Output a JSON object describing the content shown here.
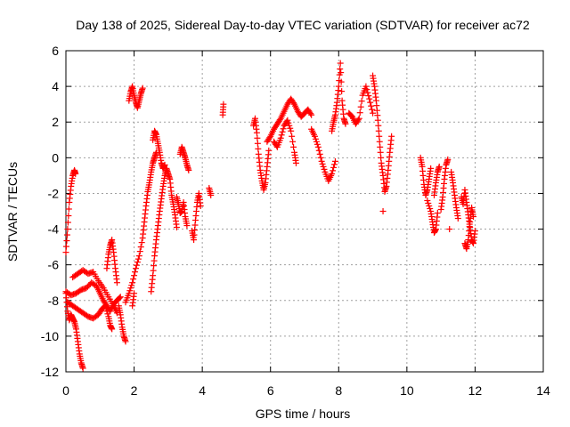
{
  "chart_data": {
    "type": "scatter",
    "title": "Day 138 of 2025, Sidereal Day-to-day VTEC variation (SDTVAR) for receiver ac72",
    "xlabel": "GPS time / hours",
    "ylabel": "SDTVAR / TECUs",
    "xlim": [
      0,
      14
    ],
    "ylim": [
      -12,
      6
    ],
    "xticks": [
      0,
      2,
      4,
      6,
      8,
      10,
      12,
      14
    ],
    "yticks": [
      -12,
      -10,
      -8,
      -6,
      -4,
      -2,
      0,
      2,
      4,
      6
    ],
    "grid": true,
    "marker": "plus",
    "color": "#ff0000",
    "series": [
      {
        "name": "SDTVAR",
        "segments": [
          [
            [
              0.0,
              -7.6
            ],
            [
              0.05,
              -8.6
            ],
            [
              0.1,
              -9.1
            ],
            [
              0.15,
              -8.8
            ],
            [
              0.2,
              -9.0
            ],
            [
              0.25,
              -9.2
            ],
            [
              0.3,
              -9.6
            ],
            [
              0.35,
              -10.3
            ],
            [
              0.4,
              -11.0
            ],
            [
              0.45,
              -11.5
            ],
            [
              0.5,
              -11.8
            ]
          ],
          [
            [
              0.0,
              -5.3
            ],
            [
              0.05,
              -4.0
            ],
            [
              0.1,
              -2.5
            ],
            [
              0.15,
              -1.6
            ],
            [
              0.2,
              -1.0
            ],
            [
              0.25,
              -0.7
            ],
            [
              0.28,
              -0.9
            ]
          ],
          [
            [
              0.0,
              -7.5
            ],
            [
              0.15,
              -7.7
            ],
            [
              0.3,
              -7.6
            ],
            [
              0.45,
              -7.4
            ],
            [
              0.6,
              -7.3
            ],
            [
              0.75,
              -7.0
            ],
            [
              0.9,
              -7.2
            ],
            [
              1.0,
              -7.6
            ],
            [
              1.1,
              -8.0
            ],
            [
              1.2,
              -8.3
            ],
            [
              1.3,
              -8.6
            ],
            [
              1.4,
              -8.2
            ],
            [
              1.5,
              -8.0
            ],
            [
              1.6,
              -7.8
            ]
          ],
          [
            [
              0.05,
              -8.1
            ],
            [
              0.2,
              -8.3
            ],
            [
              0.35,
              -8.5
            ],
            [
              0.5,
              -8.7
            ],
            [
              0.65,
              -8.9
            ],
            [
              0.8,
              -9.0
            ],
            [
              0.95,
              -8.8
            ],
            [
              1.05,
              -8.5
            ],
            [
              1.15,
              -8.3
            ],
            [
              1.25,
              -8.9
            ],
            [
              1.3,
              -9.4
            ],
            [
              1.35,
              -9.6
            ]
          ],
          [
            [
              0.2,
              -6.7
            ],
            [
              0.35,
              -6.5
            ],
            [
              0.5,
              -6.3
            ],
            [
              0.65,
              -6.5
            ],
            [
              0.8,
              -6.4
            ],
            [
              0.95,
              -6.9
            ],
            [
              1.1,
              -7.3
            ],
            [
              1.25,
              -7.8
            ],
            [
              1.4,
              -8.3
            ],
            [
              1.5,
              -8.7
            ]
          ],
          [
            [
              1.2,
              -6.2
            ],
            [
              1.25,
              -5.4
            ],
            [
              1.3,
              -4.9
            ],
            [
              1.35,
              -4.6
            ],
            [
              1.4,
              -5.3
            ],
            [
              1.45,
              -6.2
            ],
            [
              1.5,
              -7.0
            ]
          ],
          [
            [
              1.55,
              -8.3
            ],
            [
              1.6,
              -8.8
            ],
            [
              1.65,
              -9.5
            ],
            [
              1.7,
              -10.0
            ],
            [
              1.75,
              -10.3
            ]
          ],
          [
            [
              1.75,
              -8.1
            ],
            [
              1.85,
              -7.6
            ],
            [
              1.95,
              -7.0
            ],
            [
              2.05,
              -6.2
            ],
            [
              2.15,
              -5.5
            ],
            [
              2.25,
              -4.5
            ],
            [
              2.3,
              -3.6
            ],
            [
              2.35,
              -2.7
            ],
            [
              2.4,
              -1.9
            ],
            [
              2.45,
              -1.4
            ],
            [
              2.5,
              -0.8
            ],
            [
              2.55,
              -0.3
            ],
            [
              2.6,
              0.0
            ],
            [
              2.65,
              0.3
            ]
          ],
          [
            [
              1.95,
              -8.3
            ],
            [
              2.0,
              -7.6
            ]
          ],
          [
            [
              1.85,
              3.2
            ],
            [
              1.9,
              3.7
            ],
            [
              1.95,
              4.0
            ],
            [
              2.0,
              3.5
            ],
            [
              2.05,
              3.1
            ],
            [
              2.1,
              2.8
            ],
            [
              2.15,
              3.2
            ],
            [
              2.2,
              3.6
            ],
            [
              2.25,
              3.9
            ]
          ],
          [
            [
              2.5,
              -7.5
            ],
            [
              2.55,
              -6.6
            ],
            [
              2.6,
              -5.5
            ],
            [
              2.65,
              -4.6
            ],
            [
              2.7,
              -3.8
            ],
            [
              2.75,
              -3.0
            ],
            [
              2.8,
              -2.3
            ],
            [
              2.85,
              -1.6
            ],
            [
              2.9,
              -1.0
            ],
            [
              2.95,
              -0.6
            ],
            [
              3.0,
              -0.9
            ],
            [
              3.05,
              -1.2
            ],
            [
              3.1,
              -2.1
            ],
            [
              3.15,
              -2.6
            ],
            [
              3.2,
              -3.2
            ],
            [
              3.25,
              -3.9
            ]
          ],
          [
            [
              2.55,
              1.0
            ],
            [
              2.6,
              1.5
            ],
            [
              2.65,
              1.3
            ],
            [
              2.7,
              0.8
            ],
            [
              2.75,
              0.3
            ],
            [
              2.8,
              -0.3
            ],
            [
              2.85,
              -0.6
            ],
            [
              2.9,
              -0.4
            ]
          ],
          [
            [
              3.25,
              -2.2
            ],
            [
              3.3,
              -2.6
            ],
            [
              3.35,
              -3.1
            ],
            [
              3.4,
              -3.0
            ],
            [
              3.45,
              -2.5
            ],
            [
              3.5,
              -3.3
            ],
            [
              3.55,
              -3.8
            ]
          ],
          [
            [
              3.35,
              0.2
            ],
            [
              3.4,
              0.6
            ],
            [
              3.45,
              0.3
            ],
            [
              3.5,
              0.0
            ],
            [
              3.55,
              -0.4
            ],
            [
              3.6,
              -0.7
            ]
          ],
          [
            [
              3.7,
              -4.1
            ],
            [
              3.75,
              -4.6
            ],
            [
              3.8,
              -3.5
            ],
            [
              3.85,
              -2.5
            ],
            [
              3.9,
              -2.0
            ],
            [
              3.95,
              -2.7
            ]
          ],
          [
            [
              4.2,
              -1.7
            ],
            [
              4.25,
              -2.1
            ]
          ],
          [
            [
              4.6,
              2.4
            ],
            [
              4.62,
              3.0
            ]
          ],
          [
            [
              5.5,
              1.8
            ],
            [
              5.55,
              2.2
            ],
            [
              5.6,
              1.4
            ],
            [
              5.65,
              0.2
            ],
            [
              5.7,
              -0.7
            ],
            [
              5.75,
              -1.3
            ],
            [
              5.8,
              -1.8
            ],
            [
              5.85,
              -1.4
            ],
            [
              5.9,
              -0.5
            ],
            [
              5.95,
              0.4
            ]
          ],
          [
            [
              5.9,
              0.9
            ],
            [
              6.0,
              1.2
            ],
            [
              6.1,
              1.6
            ],
            [
              6.2,
              1.9
            ],
            [
              6.3,
              2.2
            ],
            [
              6.4,
              2.6
            ],
            [
              6.5,
              3.0
            ],
            [
              6.6,
              3.3
            ],
            [
              6.7,
              3.0
            ],
            [
              6.8,
              2.6
            ],
            [
              6.9,
              2.3
            ],
            [
              7.0,
              2.5
            ],
            [
              7.1,
              2.7
            ],
            [
              7.2,
              2.4
            ]
          ],
          [
            [
              6.1,
              0.9
            ],
            [
              6.2,
              0.6
            ],
            [
              6.3,
              1.1
            ],
            [
              6.4,
              1.8
            ],
            [
              6.5,
              2.1
            ],
            [
              6.6,
              1.5
            ],
            [
              6.7,
              0.3
            ],
            [
              6.75,
              -0.3
            ]
          ],
          [
            [
              7.2,
              1.6
            ],
            [
              7.3,
              1.2
            ],
            [
              7.4,
              0.6
            ],
            [
              7.5,
              -0.2
            ],
            [
              7.6,
              -0.8
            ],
            [
              7.7,
              -1.3
            ],
            [
              7.8,
              -0.9
            ],
            [
              7.9,
              -0.2
            ]
          ],
          [
            [
              7.8,
              1.5
            ],
            [
              7.85,
              2.0
            ],
            [
              7.9,
              2.4
            ],
            [
              7.95,
              3.1
            ],
            [
              8.0,
              4.0
            ],
            [
              8.05,
              5.3
            ],
            [
              8.1,
              3.2
            ],
            [
              8.15,
              2.2
            ],
            [
              8.2,
              1.9
            ]
          ],
          [
            [
              8.3,
              2.5
            ],
            [
              8.4,
              2.3
            ],
            [
              8.5,
              1.9
            ],
            [
              8.6,
              2.2
            ],
            [
              8.7,
              3.5
            ],
            [
              8.8,
              4.0
            ],
            [
              8.9,
              3.3
            ],
            [
              9.0,
              2.5
            ]
          ],
          [
            [
              9.0,
              4.6
            ],
            [
              9.05,
              4.0
            ],
            [
              9.1,
              3.2
            ],
            [
              9.15,
              2.1
            ],
            [
              9.2,
              0.9
            ],
            [
              9.25,
              -0.3
            ],
            [
              9.3,
              -1.0
            ],
            [
              9.35,
              -1.9
            ],
            [
              9.4,
              -1.6
            ],
            [
              9.45,
              -0.7
            ],
            [
              9.5,
              0.3
            ],
            [
              9.55,
              1.2
            ]
          ],
          [
            [
              9.3,
              -3.0
            ]
          ],
          [
            [
              10.4,
              0.0
            ],
            [
              10.45,
              -0.5
            ],
            [
              10.5,
              -1.5
            ],
            [
              10.55,
              -2.1
            ],
            [
              10.6,
              -1.8
            ],
            [
              10.65,
              -1.2
            ],
            [
              10.7,
              -0.6
            ]
          ],
          [
            [
              10.6,
              -2.4
            ],
            [
              10.7,
              -3.0
            ],
            [
              10.75,
              -3.6
            ],
            [
              10.8,
              -4.2
            ],
            [
              10.85,
              -4.0
            ],
            [
              10.9,
              -3.1
            ]
          ],
          [
            [
              10.8,
              -2.1
            ],
            [
              10.85,
              -1.4
            ],
            [
              10.9,
              -0.8
            ],
            [
              10.95,
              -0.5
            ]
          ],
          [
            [
              11.0,
              -2.9
            ],
            [
              11.05,
              -2.2
            ],
            [
              11.1,
              -1.2
            ],
            [
              11.15,
              -0.4
            ],
            [
              11.2,
              -0.1
            ]
          ],
          [
            [
              11.25,
              -4.0
            ]
          ],
          [
            [
              11.3,
              -0.8
            ],
            [
              11.35,
              -1.4
            ],
            [
              11.4,
              -2.1
            ],
            [
              11.45,
              -2.8
            ],
            [
              11.5,
              -3.4
            ]
          ],
          [
            [
              11.6,
              -2.2
            ],
            [
              11.65,
              -2.6
            ],
            [
              11.7,
              -1.8
            ],
            [
              11.75,
              -2.5
            ],
            [
              11.8,
              -3.2
            ],
            [
              11.85,
              -3.9
            ],
            [
              11.9,
              -4.6
            ],
            [
              11.95,
              -4.8
            ],
            [
              12.0,
              -4.1
            ]
          ],
          [
            [
              11.7,
              -4.8
            ],
            [
              11.75,
              -5.1
            ],
            [
              11.8,
              -4.6
            ],
            [
              11.85,
              -3.6
            ],
            [
              11.9,
              -2.8
            ],
            [
              11.95,
              -3.3
            ]
          ]
        ]
      }
    ]
  }
}
